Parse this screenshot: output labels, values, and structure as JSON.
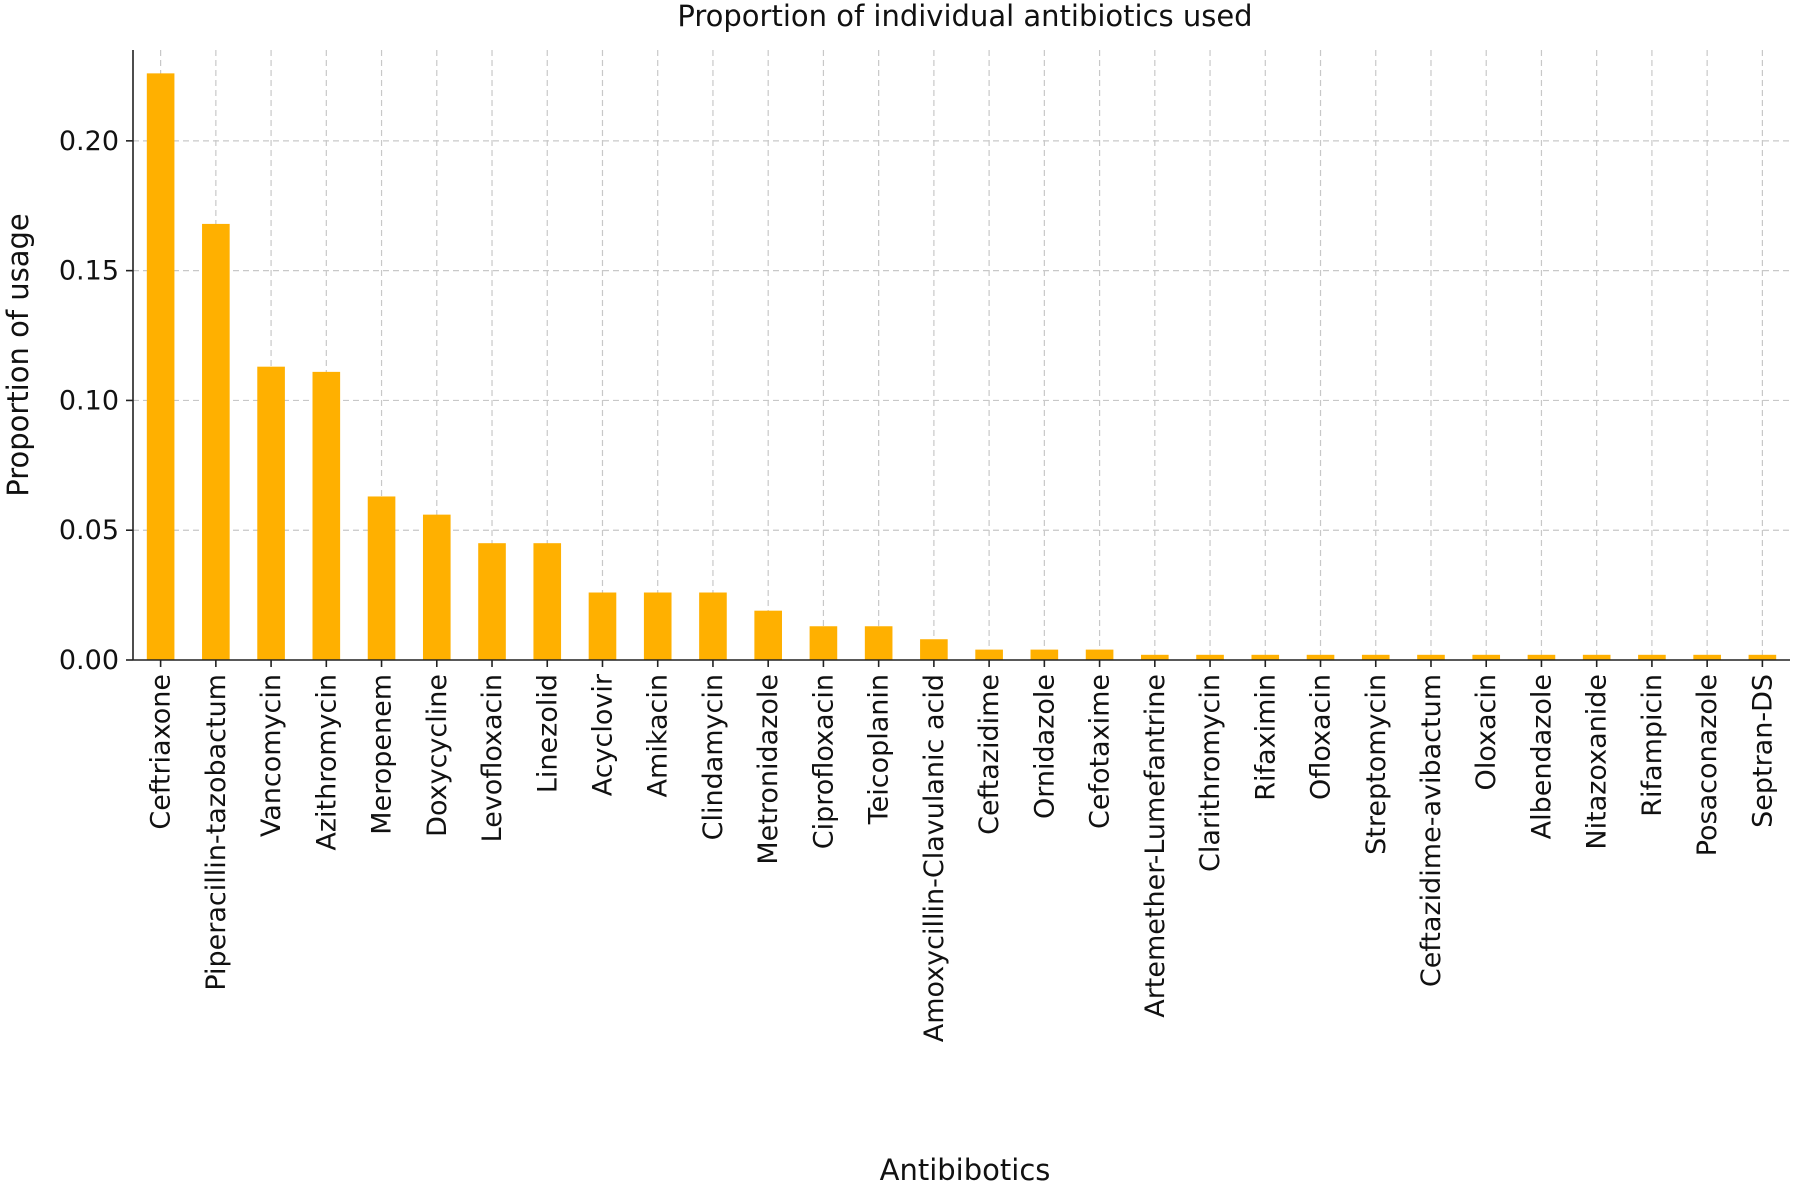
{
  "chart_data": {
    "type": "bar",
    "title": "Proportion of individual antibiotics used",
    "xlabel": "Antibibotics",
    "ylabel": "Proportion of usage",
    "ylim": [
      0,
      0.235
    ],
    "yticks": [
      "0.00",
      "0.05",
      "0.10",
      "0.15",
      "0.20"
    ],
    "grid": true,
    "colors": {
      "bar": "#FFB000"
    },
    "categories": [
      "Ceftriaxone",
      "Piperacillin-tazobactum",
      "Vancomycin",
      "Azithromycin",
      "Meropenem",
      "Doxycycline",
      "Levofloxacin",
      "Linezolid",
      "Acyclovir",
      "Amikacin",
      "Clindamycin",
      "Metronidazole",
      "Ciprofloxacin",
      "Teicoplanin",
      "Amoxycillin-Clavulanic acid",
      "Ceftazidime",
      "Ornidazole",
      "Cefotaxime",
      "Artemether-Lumefantrine",
      "Clarithromycin",
      "Rifaximin",
      "Ofloxacin",
      "Streptomycin",
      "Ceftazidime-avibactum",
      "Oloxacin",
      "Albendazole",
      "Nitazoxanide",
      "Rifampicin",
      "Posaconazole",
      "Septran-DS"
    ],
    "values": [
      0.226,
      0.168,
      0.113,
      0.111,
      0.063,
      0.056,
      0.045,
      0.045,
      0.026,
      0.026,
      0.026,
      0.019,
      0.013,
      0.013,
      0.008,
      0.004,
      0.004,
      0.004,
      0.002,
      0.002,
      0.002,
      0.002,
      0.002,
      0.002,
      0.002,
      0.002,
      0.002,
      0.002,
      0.002,
      0.002
    ]
  }
}
